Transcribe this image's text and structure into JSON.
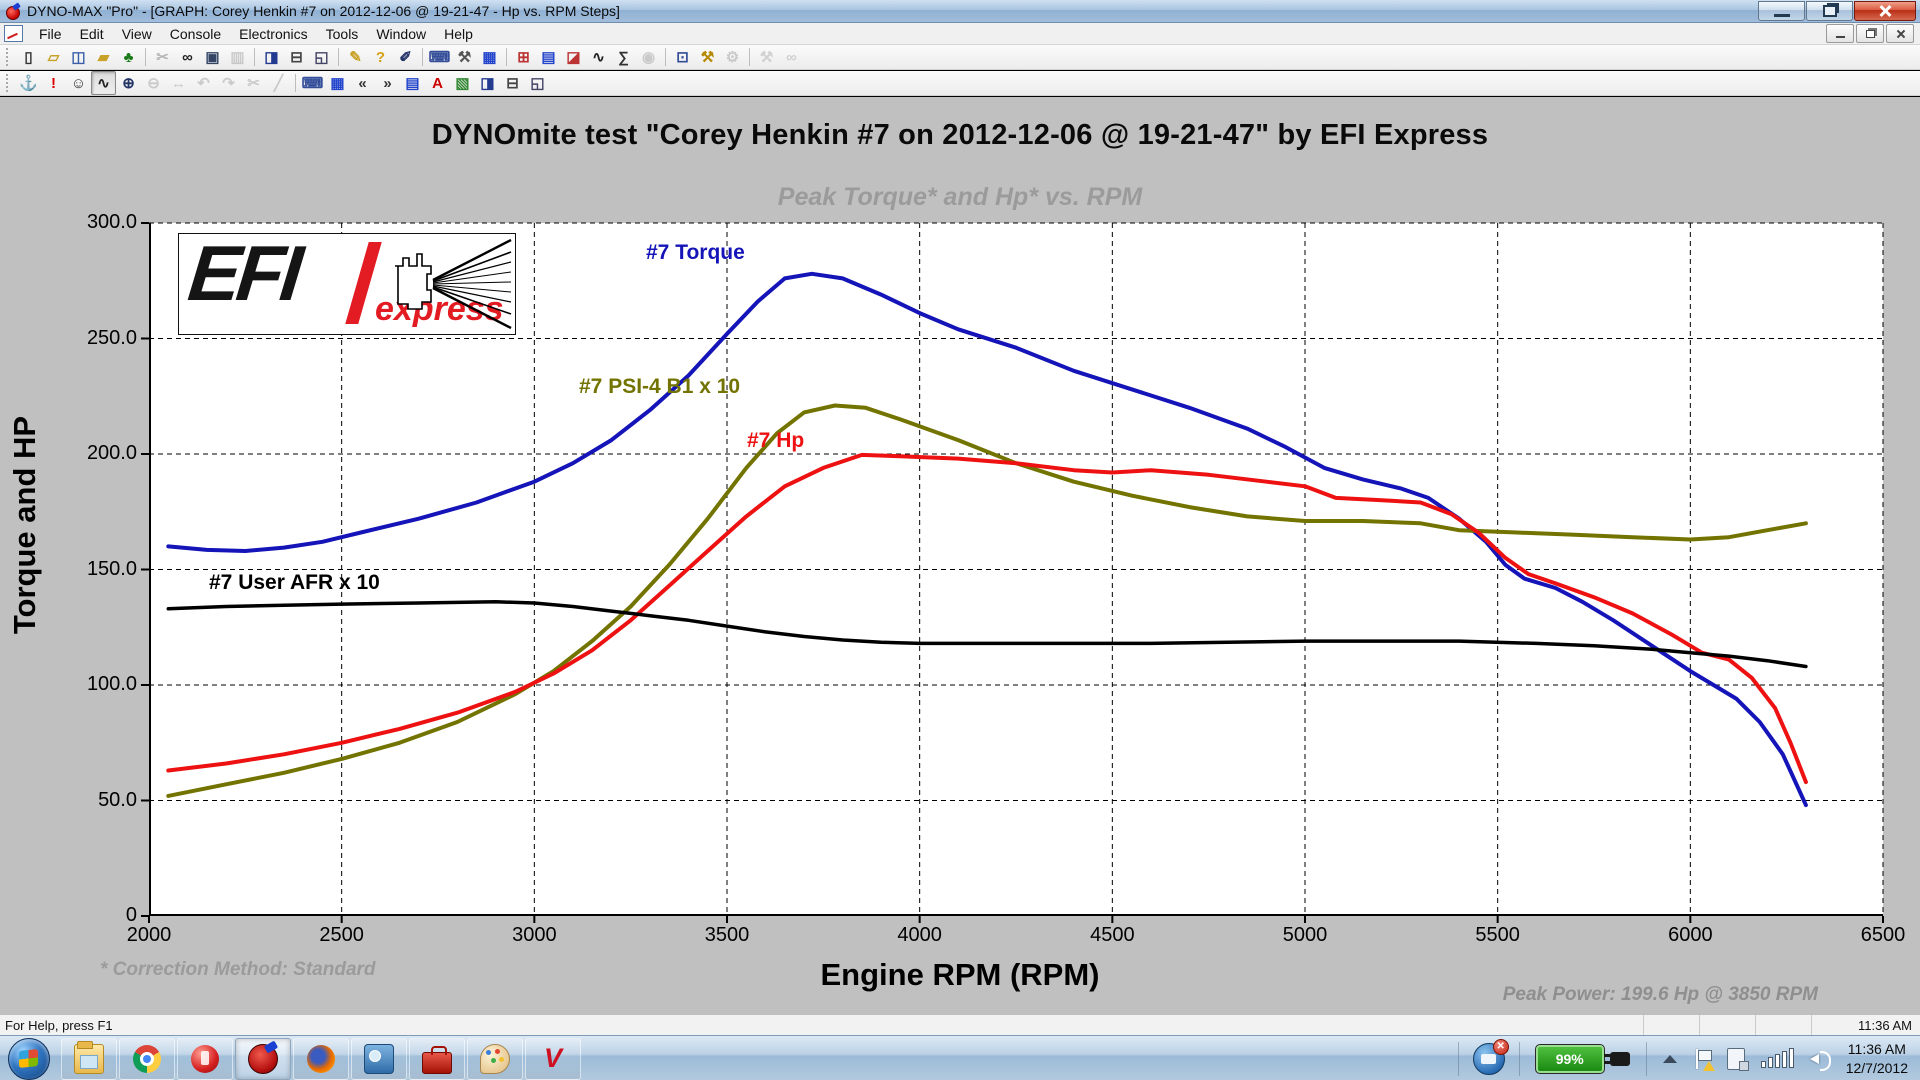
{
  "window": {
    "title": "DYNO-MAX \"Pro\" - [GRAPH: Corey Henkin #7 on 2012-12-06 @ 19-21-47 - Hp vs. RPM Steps]"
  },
  "menu": {
    "items": [
      "File",
      "Edit",
      "View",
      "Console",
      "Electronics",
      "Tools",
      "Window",
      "Help"
    ]
  },
  "toolbar_row1": [
    {
      "n": "new-document-icon",
      "g": "▯",
      "c": "#333333",
      "e": true
    },
    {
      "n": "open-folder-icon",
      "g": "▱",
      "c": "#c9a227",
      "e": true
    },
    {
      "n": "save-icon",
      "g": "◫",
      "c": "#3a5fa8",
      "e": true
    },
    {
      "n": "import-folder-icon",
      "g": "▰",
      "c": "#c9a227",
      "e": true
    },
    {
      "n": "tree-view-icon",
      "g": "♣",
      "c": "#1a7a1a",
      "e": true
    },
    "sep",
    {
      "n": "cut-icon",
      "g": "✂",
      "c": "#555555",
      "e": false
    },
    {
      "n": "find-icon",
      "g": "∞",
      "c": "#222222",
      "e": true
    },
    {
      "n": "copy-icon",
      "g": "▣",
      "c": "#334466",
      "e": true
    },
    {
      "n": "paste-icon",
      "g": "▥",
      "c": "#888888",
      "e": false
    },
    "sep",
    {
      "n": "notebook-icon",
      "g": "◨",
      "c": "#223a8f",
      "e": true
    },
    {
      "n": "print-setup-icon",
      "g": "⊟",
      "c": "#444444",
      "e": true
    },
    {
      "n": "print-preview-icon",
      "g": "◱",
      "c": "#444466",
      "e": true
    },
    "sep",
    {
      "n": "annotate-pencil-icon",
      "g": "✎",
      "c": "#c9a227",
      "e": true
    },
    {
      "n": "help-icon",
      "g": "?",
      "c": "#d4a017",
      "e": true
    },
    {
      "n": "whats-this-icon",
      "g": "✐",
      "c": "#223366",
      "e": true
    },
    "sep",
    {
      "n": "mini-console-icon",
      "g": "⌨",
      "c": "#334d99",
      "e": true
    },
    {
      "n": "run-tools-icon",
      "g": "⚒",
      "c": "#555555",
      "e": true
    },
    {
      "n": "data-grid-icon",
      "g": "▦",
      "c": "#2244cc",
      "e": true
    },
    "sep",
    {
      "n": "session-grid-icon",
      "g": "⊞",
      "c": "#bb3333",
      "e": true
    },
    {
      "n": "spreadsheet-icon",
      "g": "▤",
      "c": "#2244cc",
      "e": true
    },
    {
      "n": "graph-window-icon",
      "g": "◪",
      "c": "#bb3333",
      "e": true
    },
    {
      "n": "curve-fit-icon",
      "g": "∿",
      "c": "#222222",
      "e": true
    },
    {
      "n": "math-channel-icon",
      "g": "∑",
      "c": "#333333",
      "e": true
    },
    {
      "n": "snapshot-icon",
      "g": "◉",
      "c": "#888888",
      "e": false
    },
    "sep",
    {
      "n": "console-meter-icon",
      "g": "⊡",
      "c": "#334d99",
      "e": true
    },
    {
      "n": "config-tools-icon",
      "g": "⚒",
      "c": "#b58900",
      "e": true
    },
    {
      "n": "settings-gear-icon",
      "g": "⚙",
      "c": "#888888",
      "e": false
    },
    "sep",
    {
      "n": "repair-tools-icon",
      "g": "⚒",
      "c": "#999999",
      "e": false
    },
    {
      "n": "search-disabled-icon",
      "g": "∞",
      "c": "#999999",
      "e": false
    }
  ],
  "toolbar_row2": [
    {
      "n": "dock-window-icon",
      "g": "⚓",
      "c": "#444444",
      "e": true
    },
    {
      "n": "stop-run-icon",
      "g": "!",
      "c": "#dd0000",
      "e": true
    },
    {
      "n": "operator-icon",
      "g": "☺",
      "c": "#333333",
      "e": true
    },
    {
      "n": "autoscale-graph-icon",
      "g": "∿",
      "c": "#222222",
      "e": true,
      "pressed": true
    },
    {
      "n": "zoom-in-icon",
      "g": "⊕",
      "c": "#223366",
      "e": true
    },
    {
      "n": "zoom-out-icon",
      "g": "⊖",
      "c": "#888888",
      "e": false
    },
    {
      "n": "pan-icon",
      "g": "↔",
      "c": "#888888",
      "e": false
    },
    {
      "n": "undo-icon",
      "g": "↶",
      "c": "#888888",
      "e": false
    },
    {
      "n": "redo-icon",
      "g": "↷",
      "c": "#888888",
      "e": false
    },
    {
      "n": "cut-region-icon",
      "g": "✂",
      "c": "#888888",
      "e": false
    },
    {
      "n": "draw-line-icon",
      "g": "╱",
      "c": "#888888",
      "e": false
    },
    "sep",
    {
      "n": "calc-console-icon",
      "g": "⌨",
      "c": "#334d99",
      "e": true
    },
    {
      "n": "grid-lines-icon",
      "g": "▦",
      "c": "#2244cc",
      "e": true
    },
    {
      "n": "prev-page-icon",
      "g": "«",
      "c": "#333333",
      "e": true
    },
    {
      "n": "next-page-icon",
      "g": "»",
      "c": "#333333",
      "e": true
    },
    {
      "n": "ruler-grid-icon",
      "g": "▤",
      "c": "#2244cc",
      "e": true
    },
    {
      "n": "font-color-icon",
      "g": "A",
      "c": "#cc0000",
      "e": true
    },
    {
      "n": "edit-graph-icon",
      "g": "▧",
      "c": "#338833",
      "e": true
    },
    {
      "n": "notebook2-icon",
      "g": "◨",
      "c": "#223a8f",
      "e": true
    },
    {
      "n": "print-icon",
      "g": "⊟",
      "c": "#444444",
      "e": true
    },
    {
      "n": "page-preview-icon",
      "g": "◱",
      "c": "#444466",
      "e": true
    }
  ],
  "chart": {
    "title": "DYNOmite test \"Corey Henkin #7 on 2012-12-06 @ 19-21-47\" by EFI Express",
    "subtitle": "Peak Torque* and Hp* vs. RPM",
    "x_label": "Engine RPM (RPM)",
    "y_label": "Torque and HP",
    "correction_note": "* Correction Method: Standard",
    "peak_annotation": "Peak Power: 199.6 Hp @ 3850 RPM",
    "logo": {
      "brand": "EFI",
      "sub": "express"
    },
    "series_labels": {
      "torque": "#7 Torque",
      "psi": "#7 PSI-4 B1 x 10",
      "hp": "#7 Hp",
      "afr": "#7 User AFR x 10"
    }
  },
  "chart_data": {
    "type": "line",
    "title": "Peak Torque* and Hp* vs. RPM",
    "xlabel": "Engine RPM (RPM)",
    "ylabel": "Torque and HP",
    "xlim": [
      2000,
      6500
    ],
    "ylim": [
      0,
      300
    ],
    "grid": "dashed",
    "x_ticks": [
      2000,
      2500,
      3000,
      3500,
      4000,
      4500,
      5000,
      5500,
      6000,
      6500
    ],
    "y_ticks": [
      [
        300,
        "300.0"
      ],
      [
        250,
        "250.0"
      ],
      [
        200,
        "200.0"
      ],
      [
        150,
        "150.0"
      ],
      [
        100,
        "100.0"
      ],
      [
        50,
        "50.0"
      ],
      [
        0,
        "0"
      ]
    ],
    "peak_power": {
      "hp": 199.6,
      "rpm": 3850
    },
    "series": [
      {
        "name": "#7 Torque",
        "color": "#1414b8",
        "width": 4,
        "points": [
          [
            2050,
            160
          ],
          [
            2150,
            158.5
          ],
          [
            2250,
            158
          ],
          [
            2350,
            159.5
          ],
          [
            2450,
            162
          ],
          [
            2550,
            166
          ],
          [
            2700,
            172
          ],
          [
            2850,
            179
          ],
          [
            3000,
            188
          ],
          [
            3100,
            196
          ],
          [
            3200,
            206
          ],
          [
            3300,
            219
          ],
          [
            3400,
            234
          ],
          [
            3500,
            252
          ],
          [
            3580,
            266
          ],
          [
            3650,
            276
          ],
          [
            3720,
            278
          ],
          [
            3800,
            276
          ],
          [
            3900,
            269
          ],
          [
            4000,
            261
          ],
          [
            4100,
            254
          ],
          [
            4250,
            246
          ],
          [
            4400,
            236
          ],
          [
            4550,
            228
          ],
          [
            4700,
            220
          ],
          [
            4850,
            211
          ],
          [
            4950,
            203
          ],
          [
            5050,
            194
          ],
          [
            5150,
            189
          ],
          [
            5250,
            185
          ],
          [
            5320,
            181
          ],
          [
            5400,
            172
          ],
          [
            5470,
            162
          ],
          [
            5520,
            152
          ],
          [
            5570,
            146
          ],
          [
            5650,
            142
          ],
          [
            5720,
            136
          ],
          [
            5800,
            128
          ],
          [
            5900,
            117
          ],
          [
            6000,
            106
          ],
          [
            6060,
            100
          ],
          [
            6120,
            94
          ],
          [
            6180,
            84
          ],
          [
            6240,
            70
          ],
          [
            6300,
            48
          ]
        ]
      },
      {
        "name": "#7 PSI-4 B1 x 10",
        "color": "#737300",
        "width": 4,
        "points": [
          [
            2050,
            52
          ],
          [
            2200,
            57
          ],
          [
            2350,
            62
          ],
          [
            2500,
            68
          ],
          [
            2650,
            75
          ],
          [
            2800,
            84
          ],
          [
            2950,
            96
          ],
          [
            3050,
            106
          ],
          [
            3150,
            119
          ],
          [
            3250,
            134
          ],
          [
            3350,
            152
          ],
          [
            3450,
            172
          ],
          [
            3550,
            194
          ],
          [
            3630,
            209
          ],
          [
            3700,
            218
          ],
          [
            3780,
            221
          ],
          [
            3860,
            220
          ],
          [
            3950,
            215
          ],
          [
            4100,
            206
          ],
          [
            4250,
            196
          ],
          [
            4400,
            188
          ],
          [
            4550,
            182
          ],
          [
            4700,
            177
          ],
          [
            4850,
            173
          ],
          [
            5000,
            171
          ],
          [
            5150,
            171
          ],
          [
            5300,
            170
          ],
          [
            5400,
            167
          ],
          [
            5550,
            166
          ],
          [
            5700,
            165
          ],
          [
            5850,
            164
          ],
          [
            6000,
            163
          ],
          [
            6100,
            164
          ],
          [
            6200,
            167
          ],
          [
            6300,
            170
          ]
        ]
      },
      {
        "name": "#7 Hp",
        "color": "#ee1111",
        "width": 4,
        "points": [
          [
            2050,
            63
          ],
          [
            2200,
            66
          ],
          [
            2350,
            70
          ],
          [
            2500,
            75
          ],
          [
            2650,
            81
          ],
          [
            2800,
            88
          ],
          [
            2950,
            97
          ],
          [
            3050,
            105
          ],
          [
            3150,
            115
          ],
          [
            3250,
            128
          ],
          [
            3350,
            143
          ],
          [
            3450,
            158
          ],
          [
            3550,
            173
          ],
          [
            3650,
            186
          ],
          [
            3750,
            194
          ],
          [
            3850,
            199.6
          ],
          [
            3950,
            199
          ],
          [
            4100,
            198
          ],
          [
            4250,
            196
          ],
          [
            4400,
            193
          ],
          [
            4500,
            192
          ],
          [
            4600,
            193
          ],
          [
            4750,
            191
          ],
          [
            4900,
            188
          ],
          [
            5000,
            186
          ],
          [
            5080,
            181
          ],
          [
            5200,
            180
          ],
          [
            5300,
            179
          ],
          [
            5380,
            174
          ],
          [
            5450,
            166
          ],
          [
            5520,
            155
          ],
          [
            5580,
            148
          ],
          [
            5650,
            144
          ],
          [
            5750,
            138
          ],
          [
            5850,
            131
          ],
          [
            5950,
            122
          ],
          [
            6030,
            114
          ],
          [
            6100,
            111
          ],
          [
            6160,
            103
          ],
          [
            6220,
            90
          ],
          [
            6260,
            75
          ],
          [
            6300,
            58
          ]
        ]
      },
      {
        "name": "#7 User AFR x 10",
        "color": "#000000",
        "width": 3.5,
        "points": [
          [
            2050,
            133
          ],
          [
            2200,
            134
          ],
          [
            2350,
            134.5
          ],
          [
            2500,
            135
          ],
          [
            2700,
            135.5
          ],
          [
            2900,
            136
          ],
          [
            3000,
            135.5
          ],
          [
            3100,
            134
          ],
          [
            3200,
            132
          ],
          [
            3300,
            130
          ],
          [
            3400,
            128
          ],
          [
            3500,
            125.5
          ],
          [
            3600,
            123
          ],
          [
            3700,
            121
          ],
          [
            3800,
            119.5
          ],
          [
            3900,
            118.5
          ],
          [
            4000,
            118
          ],
          [
            4200,
            118
          ],
          [
            4400,
            118
          ],
          [
            4600,
            118
          ],
          [
            4800,
            118.5
          ],
          [
            5000,
            119
          ],
          [
            5200,
            119
          ],
          [
            5400,
            119
          ],
          [
            5600,
            118
          ],
          [
            5750,
            117
          ],
          [
            5900,
            115.5
          ],
          [
            6000,
            114
          ],
          [
            6100,
            112.5
          ],
          [
            6200,
            110.5
          ],
          [
            6300,
            108
          ]
        ]
      }
    ]
  },
  "statusbar": {
    "help_text": "For Help, press F1",
    "time": "11:36 AM"
  },
  "taskbar": {
    "apps": [
      {
        "name": "explorer-app"
      },
      {
        "name": "chrome-app"
      },
      {
        "name": "red-orb-app"
      },
      {
        "name": "dynomax-app",
        "active": true
      },
      {
        "name": "firefox-app"
      },
      {
        "name": "console-app"
      },
      {
        "name": "toolbox-app"
      },
      {
        "name": "paint-app"
      },
      {
        "name": "v-app",
        "glyph": "V"
      }
    ],
    "tray": {
      "battery": "99%",
      "time": "11:36 AM",
      "date": "12/7/2012"
    }
  }
}
